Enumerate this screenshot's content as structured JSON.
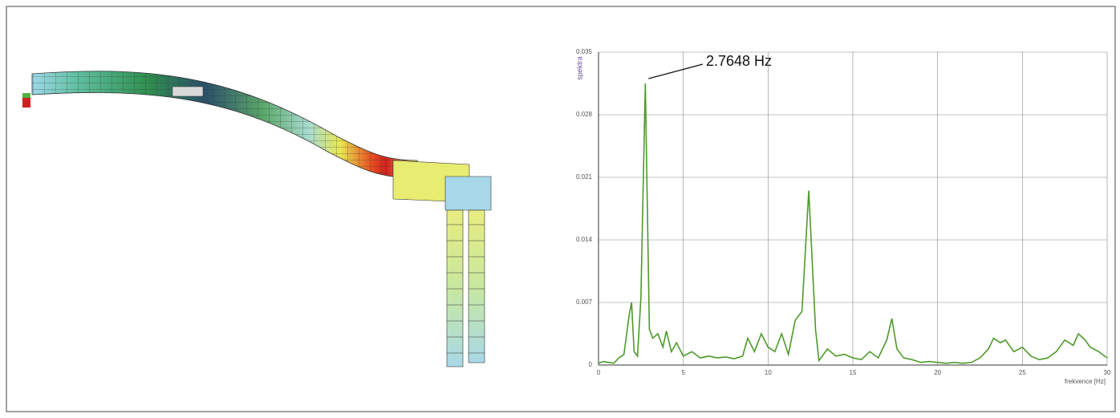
{
  "chart_data": {
    "type": "line",
    "ylabel": "spektra",
    "xlabel": "frekvence [Hz]",
    "annotation": "2.7648 Hz",
    "xlim": [
      0,
      30
    ],
    "xticks": [
      0,
      5,
      10,
      15,
      20,
      25,
      30
    ],
    "ylim": [
      0,
      0.035
    ],
    "yticks": [
      0,
      0.007,
      0.014,
      0.021,
      0.028,
      0.035
    ],
    "grid": true,
    "series": [
      {
        "color": "#4e9a2a",
        "x": [
          0,
          0.3,
          0.6,
          0.9,
          1.2,
          1.5,
          1.8,
          1.95,
          2.1,
          2.3,
          2.5,
          2.76,
          3.0,
          3.2,
          3.5,
          3.8,
          4.0,
          4.3,
          4.6,
          5.0,
          5.5,
          6,
          6.5,
          7,
          7.5,
          8,
          8.5,
          8.8,
          9.2,
          9.6,
          10,
          10.4,
          10.8,
          11.2,
          11.6,
          12.0,
          12.4,
          12.8,
          13.0,
          13.5,
          14,
          14.5,
          15,
          15.5,
          16,
          16.5,
          17.0,
          17.3,
          17.6,
          18,
          18.5,
          19,
          19.5,
          20,
          20.5,
          21,
          21.5,
          22,
          22.5,
          23,
          23.3,
          23.7,
          24,
          24.5,
          25,
          25.5,
          26,
          26.5,
          27,
          27.5,
          28,
          28.3,
          28.7,
          29,
          29.5,
          30
        ],
        "values": [
          0.0002,
          0.0004,
          0.0003,
          0.0002,
          0.0008,
          0.0012,
          0.0055,
          0.007,
          0.0015,
          0.001,
          0.0075,
          0.0315,
          0.004,
          0.003,
          0.0035,
          0.002,
          0.0038,
          0.0015,
          0.0025,
          0.001,
          0.0015,
          0.0008,
          0.001,
          0.0008,
          0.0009,
          0.0007,
          0.001,
          0.003,
          0.0015,
          0.0035,
          0.002,
          0.0015,
          0.0035,
          0.0012,
          0.005,
          0.006,
          0.0195,
          0.004,
          0.0005,
          0.0018,
          0.001,
          0.0012,
          0.0008,
          0.0006,
          0.0015,
          0.0008,
          0.0028,
          0.0052,
          0.0018,
          0.0008,
          0.0006,
          0.0003,
          0.0004,
          0.0003,
          0.0002,
          0.0003,
          0.0002,
          0.0003,
          0.0008,
          0.0018,
          0.003,
          0.0025,
          0.0028,
          0.0015,
          0.002,
          0.001,
          0.0006,
          0.0008,
          0.0015,
          0.0028,
          0.0022,
          0.0035,
          0.0028,
          0.002,
          0.0015,
          0.0008
        ]
      }
    ]
  }
}
